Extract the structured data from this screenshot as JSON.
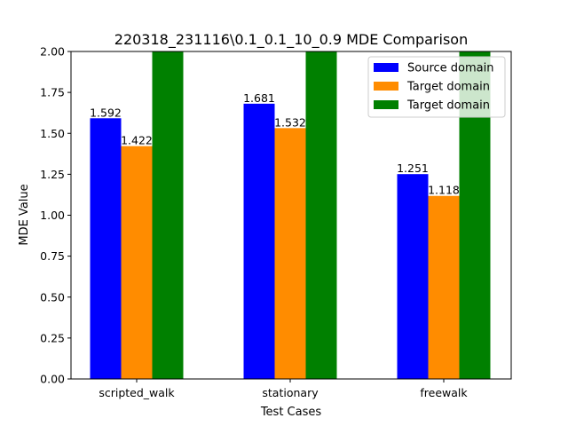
{
  "chart_data": {
    "type": "bar",
    "title": "220318_231116\\0.1_0.1_10_0.9 MDE Comparison",
    "xlabel": "Test Cases",
    "ylabel": "MDE Value",
    "categories": [
      "scripted_walk",
      "stationary",
      "freewalk"
    ],
    "ylim": [
      0,
      2.0
    ],
    "yticks": [
      "0.00",
      "0.25",
      "0.50",
      "0.75",
      "1.00",
      "1.25",
      "1.50",
      "1.75",
      "2.00"
    ],
    "legend_position": "top-right",
    "grid": false,
    "series": [
      {
        "name": "Source domain",
        "color": "#0000ff",
        "values": [
          1.592,
          1.681,
          1.251
        ],
        "labels": [
          "1.592",
          "1.681",
          "1.251"
        ]
      },
      {
        "name": "Target domain",
        "color": "#ff8c00",
        "values": [
          1.422,
          1.532,
          1.118
        ],
        "labels": [
          "1.422",
          "1.532",
          "1.118"
        ]
      },
      {
        "name": "Target domain",
        "color": "#008000",
        "values": [
          2.0,
          2.0,
          2.0
        ],
        "labels": []
      }
    ]
  }
}
